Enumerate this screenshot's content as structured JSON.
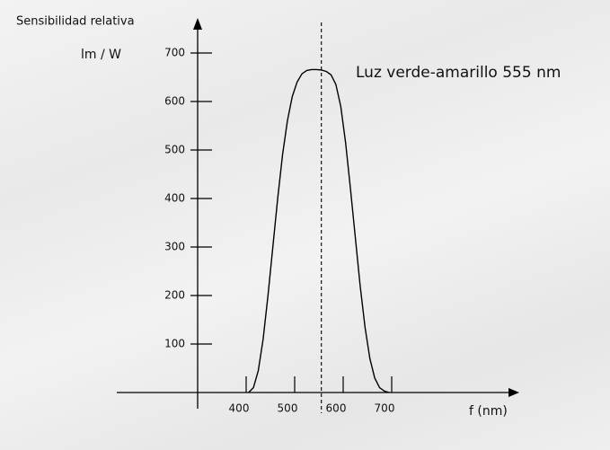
{
  "chart_data": {
    "type": "line",
    "y_label": "Sensibilidad relativa",
    "y_unit": "lm / W",
    "x_label": "f (nm)",
    "annotation": "Luz verde-amarillo 555 nm",
    "annotation_x": 555,
    "x": [
      405,
      415,
      425,
      435,
      445,
      455,
      465,
      475,
      485,
      495,
      505,
      515,
      525,
      535,
      545,
      555,
      565,
      575,
      585,
      595,
      605,
      615,
      625,
      635,
      645,
      655,
      665,
      675,
      685,
      695
    ],
    "series": [
      {
        "color": "#000000",
        "values": [
          0,
          10,
          45,
          110,
          200,
          300,
          400,
          490,
          560,
          610,
          640,
          657,
          664,
          666,
          666,
          665,
          662,
          655,
          635,
          590,
          515,
          420,
          320,
          220,
          135,
          70,
          30,
          10,
          3,
          0
        ]
      }
    ],
    "xlim": [
      300,
      950
    ],
    "ylim": [
      0,
      770
    ],
    "xticks": [
      400,
      500,
      600,
      700
    ],
    "yticks": [
      100,
      200,
      300,
      400,
      500,
      600,
      700
    ]
  }
}
